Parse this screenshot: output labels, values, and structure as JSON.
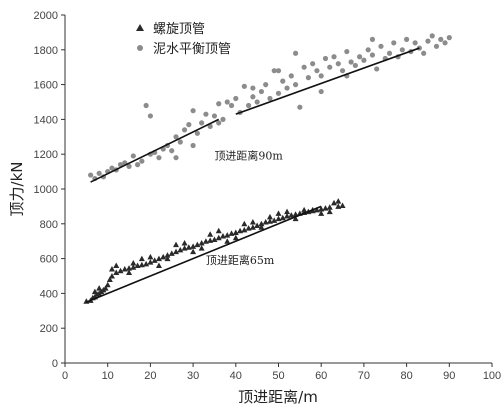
{
  "chart_data": {
    "type": "scatter",
    "xlabel": "顶进距离/m",
    "ylabel": "顶力/kN",
    "xlim": [
      0,
      100
    ],
    "ylim": [
      0,
      2000
    ],
    "xticks": [
      0,
      10,
      20,
      30,
      40,
      50,
      60,
      70,
      80,
      90,
      100
    ],
    "yticks": [
      0,
      200,
      400,
      600,
      800,
      1000,
      1200,
      1400,
      1600,
      1800,
      2000
    ],
    "legend_position": "top-left",
    "annotations": [
      {
        "text": "顶进距离90m",
        "x": 35,
        "y": 1170
      },
      {
        "text": "顶进距离65m",
        "x": 33,
        "y": 570
      }
    ],
    "series": [
      {
        "name": "螺旋顶管",
        "marker": "triangle",
        "color": "#2a2a2a",
        "points": [
          [
            5,
            355
          ],
          [
            6,
            360
          ],
          [
            6.5,
            375
          ],
          [
            7,
            380
          ],
          [
            7.5,
            395
          ],
          [
            8,
            400
          ],
          [
            8.5,
            410
          ],
          [
            9,
            420
          ],
          [
            9.5,
            430
          ],
          [
            10,
            450
          ],
          [
            10.5,
            480
          ],
          [
            11,
            500
          ],
          [
            12,
            520
          ],
          [
            13,
            530
          ],
          [
            14,
            540
          ],
          [
            15,
            545
          ],
          [
            16,
            550
          ],
          [
            17,
            560
          ],
          [
            18,
            565
          ],
          [
            19,
            570
          ],
          [
            20,
            580
          ],
          [
            21,
            590
          ],
          [
            22,
            600
          ],
          [
            23,
            610
          ],
          [
            24,
            620
          ],
          [
            25,
            630
          ],
          [
            26,
            640
          ],
          [
            27,
            650
          ],
          [
            28,
            660
          ],
          [
            29,
            665
          ],
          [
            30,
            670
          ],
          [
            31,
            680
          ],
          [
            32,
            690
          ],
          [
            33,
            700
          ],
          [
            34,
            705
          ],
          [
            35,
            710
          ],
          [
            36,
            720
          ],
          [
            37,
            730
          ],
          [
            38,
            735
          ],
          [
            39,
            745
          ],
          [
            40,
            750
          ],
          [
            41,
            760
          ],
          [
            42,
            765
          ],
          [
            43,
            775
          ],
          [
            44,
            780
          ],
          [
            45,
            790
          ],
          [
            46,
            800
          ],
          [
            47,
            810
          ],
          [
            48,
            815
          ],
          [
            49,
            820
          ],
          [
            50,
            830
          ],
          [
            51,
            835
          ],
          [
            52,
            845
          ],
          [
            53,
            850
          ],
          [
            54,
            855
          ],
          [
            55,
            860
          ],
          [
            56,
            865
          ],
          [
            57,
            870
          ],
          [
            58,
            875
          ],
          [
            59,
            880
          ],
          [
            60,
            885
          ],
          [
            61,
            890
          ],
          [
            62,
            895
          ],
          [
            63,
            920
          ],
          [
            64,
            900
          ],
          [
            65,
            905
          ],
          [
            8,
            430
          ],
          [
            12,
            560
          ],
          [
            15,
            520
          ],
          [
            18,
            600
          ],
          [
            22,
            560
          ],
          [
            26,
            680
          ],
          [
            30,
            640
          ],
          [
            34,
            740
          ],
          [
            38,
            700
          ],
          [
            42,
            800
          ],
          [
            46,
            780
          ],
          [
            50,
            860
          ],
          [
            54,
            830
          ],
          [
            58,
            880
          ],
          [
            62,
            870
          ],
          [
            7,
            410
          ],
          [
            11,
            540
          ],
          [
            16,
            575
          ],
          [
            20,
            610
          ],
          [
            24,
            600
          ],
          [
            28,
            690
          ],
          [
            32,
            660
          ],
          [
            36,
            760
          ],
          [
            40,
            720
          ],
          [
            44,
            810
          ],
          [
            48,
            840
          ],
          [
            52,
            870
          ],
          [
            56,
            880
          ],
          [
            60,
            860
          ],
          [
            64,
            930
          ]
        ]
      },
      {
        "name": "泥水平衡顶管",
        "marker": "circle",
        "color": "#8c8c8c",
        "points": [
          [
            6,
            1080
          ],
          [
            7,
            1060
          ],
          [
            8,
            1090
          ],
          [
            9,
            1070
          ],
          [
            10,
            1100
          ],
          [
            11,
            1120
          ],
          [
            12,
            1110
          ],
          [
            13,
            1140
          ],
          [
            14,
            1150
          ],
          [
            15,
            1130
          ],
          [
            16,
            1190
          ],
          [
            17,
            1140
          ],
          [
            18,
            1160
          ],
          [
            19,
            1480
          ],
          [
            20,
            1200
          ],
          [
            21,
            1210
          ],
          [
            22,
            1180
          ],
          [
            23,
            1230
          ],
          [
            24,
            1250
          ],
          [
            25,
            1220
          ],
          [
            26,
            1300
          ],
          [
            27,
            1270
          ],
          [
            28,
            1340
          ],
          [
            29,
            1370
          ],
          [
            30,
            1450
          ],
          [
            31,
            1320
          ],
          [
            32,
            1380
          ],
          [
            33,
            1430
          ],
          [
            34,
            1360
          ],
          [
            35,
            1420
          ],
          [
            36,
            1490
          ],
          [
            37,
            1400
          ],
          [
            38,
            1500
          ],
          [
            39,
            1480
          ],
          [
            40,
            1520
          ],
          [
            41,
            1440
          ],
          [
            42,
            1590
          ],
          [
            43,
            1480
          ],
          [
            44,
            1530
          ],
          [
            45,
            1500
          ],
          [
            46,
            1560
          ],
          [
            47,
            1600
          ],
          [
            48,
            1520
          ],
          [
            49,
            1680
          ],
          [
            50,
            1550
          ],
          [
            51,
            1620
          ],
          [
            52,
            1580
          ],
          [
            53,
            1650
          ],
          [
            54,
            1600
          ],
          [
            55,
            1470
          ],
          [
            56,
            1700
          ],
          [
            57,
            1640
          ],
          [
            58,
            1720
          ],
          [
            59,
            1680
          ],
          [
            60,
            1650
          ],
          [
            61,
            1750
          ],
          [
            62,
            1700
          ],
          [
            63,
            1760
          ],
          [
            64,
            1720
          ],
          [
            65,
            1680
          ],
          [
            66,
            1790
          ],
          [
            67,
            1730
          ],
          [
            68,
            1710
          ],
          [
            69,
            1760
          ],
          [
            70,
            1740
          ],
          [
            71,
            1800
          ],
          [
            72,
            1770
          ],
          [
            73,
            1690
          ],
          [
            74,
            1820
          ],
          [
            75,
            1750
          ],
          [
            76,
            1780
          ],
          [
            77,
            1840
          ],
          [
            78,
            1760
          ],
          [
            79,
            1800
          ],
          [
            80,
            1860
          ],
          [
            81,
            1790
          ],
          [
            82,
            1840
          ],
          [
            83,
            1810
          ],
          [
            84,
            1780
          ],
          [
            85,
            1850
          ],
          [
            86,
            1880
          ],
          [
            87,
            1820
          ],
          [
            88,
            1860
          ],
          [
            89,
            1840
          ],
          [
            90,
            1870
          ],
          [
            20,
            1420
          ],
          [
            26,
            1180
          ],
          [
            30,
            1250
          ],
          [
            36,
            1380
          ],
          [
            44,
            1580
          ],
          [
            50,
            1680
          ],
          [
            54,
            1780
          ],
          [
            60,
            1560
          ],
          [
            66,
            1650
          ],
          [
            72,
            1860
          ]
        ]
      }
    ],
    "fit_lines": [
      {
        "x": [
          6,
          36
        ],
        "y": [
          1040,
          1400
        ]
      },
      {
        "x": [
          40,
          83
        ],
        "y": [
          1430,
          1810
        ]
      },
      {
        "x": [
          5,
          60
        ],
        "y": [
          350,
          900
        ]
      }
    ]
  }
}
